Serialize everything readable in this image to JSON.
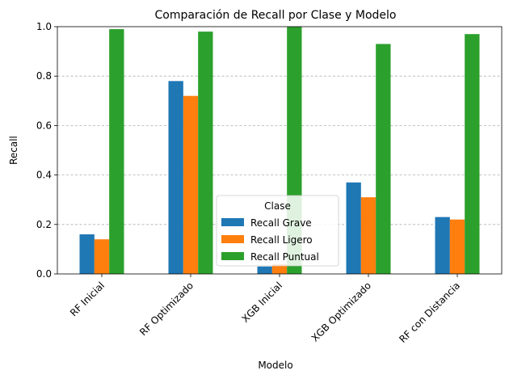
{
  "chart_data": {
    "type": "bar",
    "title": "Comparación de Recall por Clase y Modelo",
    "xlabel": "Modelo",
    "ylabel": "Recall",
    "ylim": [
      0,
      1.0
    ],
    "yticks": [
      "0.0",
      "0.2",
      "0.4",
      "0.6",
      "0.8",
      "1.0"
    ],
    "grid": "y-dashed",
    "categories": [
      "RF Inicial",
      "RF Optimizado",
      "XGB Inicial",
      "XGB Optimizado",
      "RF con Distancia"
    ],
    "series": [
      {
        "name": "Recall Grave",
        "color": "#1f77b4",
        "values": [
          0.16,
          0.78,
          0.03,
          0.37,
          0.23
        ]
      },
      {
        "name": "Recall Ligero",
        "color": "#ff7f0e",
        "values": [
          0.14,
          0.72,
          0.04,
          0.31,
          0.22
        ]
      },
      {
        "name": "Recall Puntual",
        "color": "#2ca02c",
        "values": [
          0.99,
          0.98,
          1.0,
          0.93,
          0.97
        ]
      }
    ],
    "legend": {
      "title": "Clase",
      "placement": "lower-center"
    }
  }
}
